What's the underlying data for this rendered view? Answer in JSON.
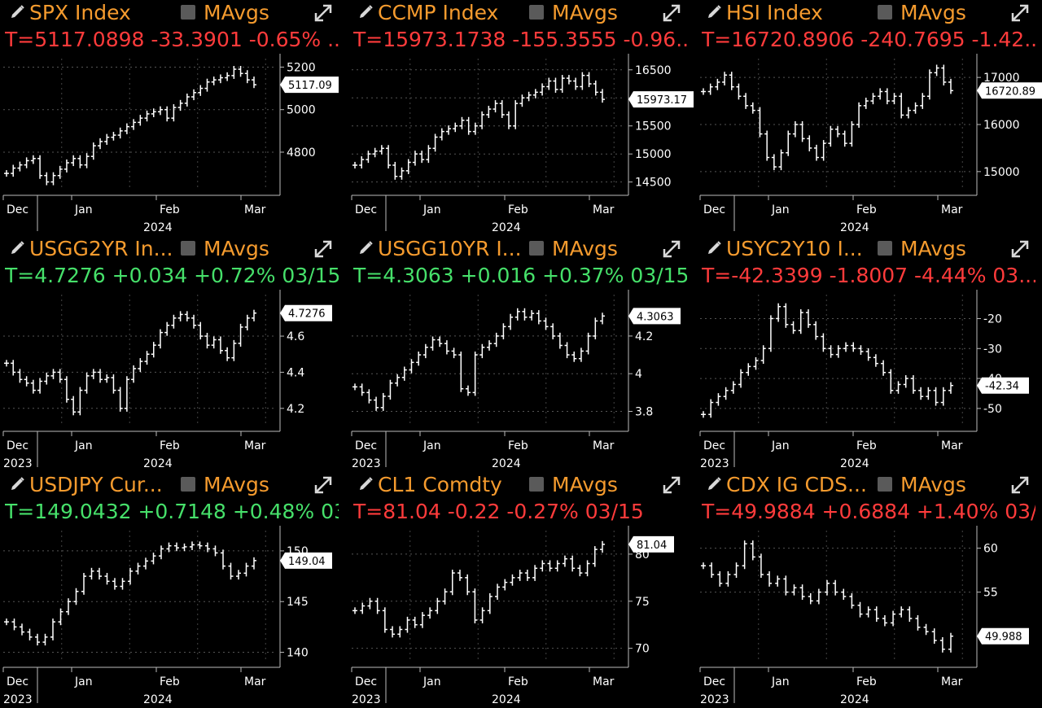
{
  "panels": [
    {
      "title": "SPX Index",
      "mavgs_label": "MAvgs",
      "stat": "T=5117.0898 -33.3901 -0.65% ...",
      "stat_color": "#ff3b3b",
      "x_ticks": [
        "Dec",
        "Jan",
        "Feb",
        "Mar"
      ],
      "year_labels": [
        "",
        "2024"
      ]
    },
    {
      "title": "CCMP Index",
      "mavgs_label": "MAvgs",
      "stat": "T=15973.1738 -155.3555 -0.96...",
      "stat_color": "#ff3b3b",
      "x_ticks": [
        "Dec",
        "Jan",
        "Feb",
        "Mar"
      ],
      "year_labels": [
        "",
        "2024"
      ]
    },
    {
      "title": "HSI Index",
      "mavgs_label": "MAvgs",
      "stat": "T=16720.8906 -240.7695 -1.42...",
      "stat_color": "#ff3b3b",
      "x_ticks": [
        "Dec",
        "Jan",
        "Feb",
        "Mar"
      ],
      "year_labels": [
        "",
        "2024"
      ]
    },
    {
      "title": "USGG2YR In...",
      "mavgs_label": "MAvgs",
      "stat": "T=4.7276 +0.034 +0.72% 03/15",
      "stat_color": "#46e06a",
      "x_ticks": [
        "Dec",
        "Jan",
        "Feb",
        "Mar"
      ],
      "year_labels": [
        "2023",
        "2024"
      ]
    },
    {
      "title": "USGG10YR I...",
      "mavgs_label": "MAvgs",
      "stat": "T=4.3063 +0.016 +0.37% 03/15",
      "stat_color": "#46e06a",
      "x_ticks": [
        "Dec",
        "Jan",
        "Feb",
        "Mar"
      ],
      "year_labels": [
        "2023",
        "2024"
      ]
    },
    {
      "title": "USYC2Y10 I...",
      "mavgs_label": "MAvgs",
      "stat": "T=-42.3399 -1.8007 -4.44% 03...",
      "stat_color": "#ff3b3b",
      "x_ticks": [
        "Dec",
        "Jan",
        "Feb",
        "Mar"
      ],
      "year_labels": [
        "2023",
        "2024"
      ]
    },
    {
      "title": "USDJPY Cur...",
      "mavgs_label": "MAvgs",
      "stat": "T=149.0432 +0.7148 +0.48% 03...",
      "stat_color": "#46e06a",
      "x_ticks": [
        "Dec",
        "Jan",
        "Feb",
        "Mar"
      ],
      "year_labels": [
        "2023",
        "2024"
      ]
    },
    {
      "title": "CL1 Comdty",
      "mavgs_label": "MAvgs",
      "stat": "T=81.04 -0.22 -0.27% 03/15",
      "stat_color": "#ff3b3b",
      "x_ticks": [
        "Dec",
        "Jan",
        "Feb",
        "Mar"
      ],
      "year_labels": [
        "2023",
        "2024"
      ]
    },
    {
      "title": "CDX IG CDS...",
      "mavgs_label": "MAvgs",
      "stat": "T=49.9884 +0.6884 +1.40% 03/...",
      "stat_color": "#ff3b3b",
      "x_ticks": [
        "Dec",
        "Jan",
        "Feb",
        "Mar"
      ],
      "year_labels": [
        "2023",
        "2024"
      ]
    }
  ],
  "chart_data": [
    {
      "type": "line",
      "title": "SPX Index",
      "yticks": [
        4800,
        5000,
        5200
      ],
      "ylim": [
        4620,
        5240
      ],
      "last_label": "5117.09",
      "last_value": 5117.09,
      "series": [
        {
          "values": [
            4700,
            4725,
            4740,
            4760,
            4770,
            4690,
            4660,
            4690,
            4720,
            4750,
            4770,
            4740,
            4780,
            4830,
            4850,
            4870,
            4880,
            4900,
            4920,
            4940,
            4960,
            4980,
            4990,
            5000,
            4960,
            5010,
            5030,
            5060,
            5080,
            5100,
            5130,
            5140,
            5150,
            5160,
            5190,
            5170,
            5140,
            5117
          ]
        }
      ]
    },
    {
      "type": "line",
      "title": "CCMP Index",
      "yticks": [
        14500,
        15000,
        15500,
        16000,
        16500
      ],
      "ylim": [
        14350,
        16700
      ],
      "last_label": "15973.17",
      "last_value": 15973.17,
      "series": [
        {
          "values": [
            14800,
            14900,
            15000,
            15050,
            15100,
            14800,
            14600,
            14700,
            14850,
            15000,
            14900,
            15100,
            15300,
            15400,
            15450,
            15500,
            15600,
            15400,
            15500,
            15700,
            15800,
            15900,
            15700,
            15500,
            15900,
            16000,
            16050,
            16100,
            16200,
            16300,
            16150,
            16350,
            16300,
            16200,
            16400,
            16250,
            16100,
            15973
          ]
        }
      ]
    },
    {
      "type": "line",
      "title": "HSI Index",
      "yticks": [
        15000,
        16000,
        17000
      ],
      "ylim": [
        14600,
        17400
      ],
      "last_label": "16720.89",
      "last_value": 16720.89,
      "series": [
        {
          "values": [
            16700,
            16800,
            16900,
            17050,
            16800,
            16600,
            16400,
            16300,
            15800,
            15300,
            15100,
            15400,
            15800,
            16000,
            15700,
            15500,
            15300,
            15600,
            15900,
            15800,
            15600,
            16000,
            16400,
            16500,
            16600,
            16700,
            16500,
            16600,
            16200,
            16300,
            16400,
            16600,
            17100,
            17200,
            16900,
            16720
          ]
        }
      ]
    },
    {
      "type": "line",
      "title": "USGG2YR In...",
      "yticks": [
        4.2,
        4.4,
        4.6
      ],
      "ylim": [
        4.1,
        4.83
      ],
      "last_label": "4.7276",
      "last_value": 4.7276,
      "series": [
        {
          "values": [
            4.45,
            4.4,
            4.36,
            4.34,
            4.3,
            4.35,
            4.38,
            4.4,
            4.36,
            4.25,
            4.18,
            4.3,
            4.38,
            4.4,
            4.36,
            4.37,
            4.3,
            4.2,
            4.36,
            4.42,
            4.46,
            4.5,
            4.55,
            4.62,
            4.66,
            4.7,
            4.72,
            4.7,
            4.66,
            4.6,
            4.55,
            4.58,
            4.52,
            4.48,
            4.56,
            4.65,
            4.7,
            4.7276
          ]
        }
      ]
    },
    {
      "type": "line",
      "title": "USGG10YR I...",
      "yticks": [
        3.8,
        4.0,
        4.2
      ],
      "ylim": [
        3.72,
        4.42
      ],
      "last_label": "4.3063",
      "last_value": 4.3063,
      "series": [
        {
          "values": [
            3.93,
            3.9,
            3.86,
            3.82,
            3.88,
            3.95,
            3.98,
            4.02,
            4.06,
            4.1,
            4.14,
            4.18,
            4.16,
            4.12,
            4.1,
            3.92,
            3.9,
            4.1,
            4.14,
            4.16,
            4.2,
            4.25,
            4.3,
            4.33,
            4.3,
            4.32,
            4.28,
            4.25,
            4.2,
            4.15,
            4.1,
            4.08,
            4.12,
            4.2,
            4.28,
            4.3063
          ]
        }
      ]
    },
    {
      "type": "line",
      "title": "USYC2Y10 I...",
      "yticks": [
        -50,
        -40,
        -30,
        -20
      ],
      "ylim": [
        -56,
        -12
      ],
      "last_label": "-42.34",
      "last_value": -42.34,
      "series": [
        {
          "values": [
            -52,
            -48,
            -46,
            -44,
            -42,
            -38,
            -36,
            -34,
            -30,
            -20,
            -16,
            -22,
            -24,
            -18,
            -22,
            -26,
            -30,
            -32,
            -30,
            -29,
            -30,
            -31,
            -33,
            -35,
            -38,
            -44,
            -42,
            -40,
            -44,
            -46,
            -44,
            -48,
            -44,
            -42.34
          ]
        }
      ]
    },
    {
      "type": "line",
      "title": "USDJPY Cur...",
      "yticks": [
        140,
        145,
        150
      ],
      "ylim": [
        139,
        152
      ],
      "last_label": "149.04",
      "last_value": 149.04,
      "series": [
        {
          "values": [
            143,
            142.5,
            142,
            141.5,
            141,
            141.5,
            143,
            144,
            145,
            146,
            147.5,
            148,
            147.5,
            147,
            146.5,
            147,
            148,
            148.5,
            149,
            149.5,
            150.2,
            150.5,
            150.3,
            150.4,
            150.6,
            150.5,
            150.2,
            149.8,
            148.5,
            147.5,
            147.8,
            148.5,
            149.04
          ]
        }
      ]
    },
    {
      "type": "line",
      "title": "CL1 Comdty",
      "yticks": [
        70,
        75,
        80
      ],
      "ylim": [
        68.5,
        82.5
      ],
      "last_label": "81.04",
      "last_value": 81.04,
      "series": [
        {
          "values": [
            74,
            74.5,
            75,
            74,
            72,
            71.5,
            72,
            73,
            72.5,
            73.5,
            74,
            75,
            76,
            78,
            77.5,
            76,
            73,
            74,
            75.5,
            76.5,
            77,
            77.5,
            78,
            77.5,
            78.5,
            79,
            78.5,
            79,
            79.5,
            78.5,
            78,
            79,
            80.5,
            81.04
          ]
        }
      ]
    },
    {
      "type": "line",
      "title": "CDX IG CDS...",
      "yticks": [
        55,
        60
      ],
      "ylim": [
        47,
        62
      ],
      "last_label": "49.988",
      "last_value": 49.988,
      "series": [
        {
          "values": [
            58,
            57,
            56,
            57,
            58,
            60.5,
            59,
            57,
            56,
            56.5,
            55,
            55.5,
            54.5,
            54,
            55,
            56,
            55,
            54.5,
            53.5,
            52.5,
            53,
            52,
            51.5,
            52.5,
            53,
            52,
            51,
            50.5,
            49.5,
            48.5,
            49.988
          ]
        }
      ]
    }
  ]
}
